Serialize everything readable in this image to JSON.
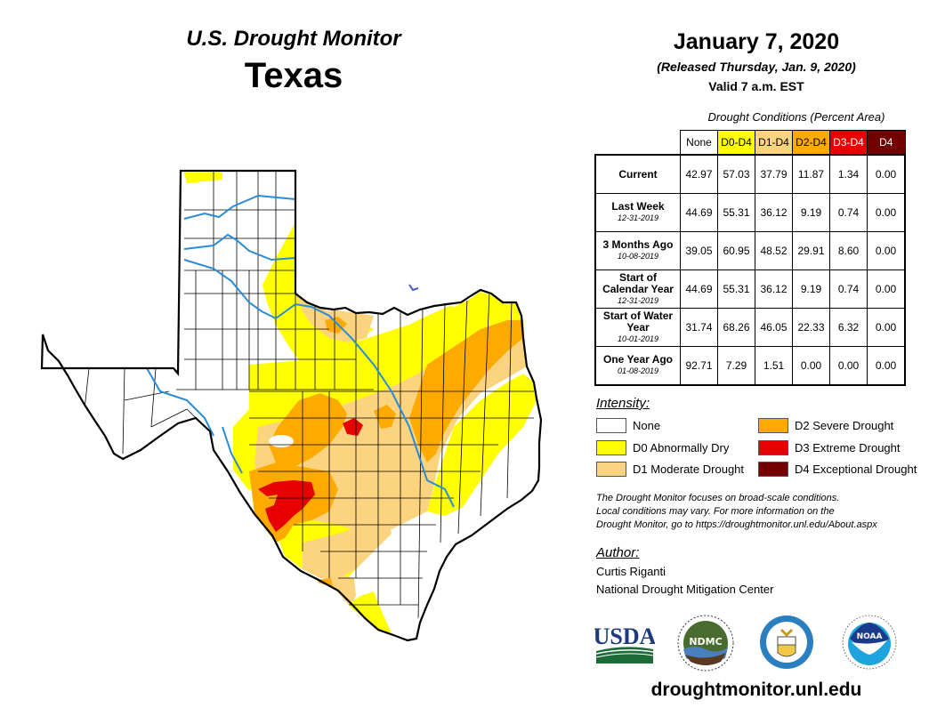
{
  "header": {
    "title": "U.S. Drought Monitor",
    "state": "Texas",
    "date": "January 7, 2020",
    "released": "(Released Thursday, Jan. 9, 2020)",
    "valid": "Valid 7 a.m. EST"
  },
  "table": {
    "caption": "Drought Conditions (Percent Area)",
    "columns": [
      {
        "label": "None",
        "color": "#ffffff",
        "text_color": "#000000"
      },
      {
        "label": "D0-D4",
        "color": "#ffff00",
        "text_color": "#000000"
      },
      {
        "label": "D1-D4",
        "color": "#fcd37f",
        "text_color": "#000000"
      },
      {
        "label": "D2-D4",
        "color": "#ffaa00",
        "text_color": "#000000"
      },
      {
        "label": "D3-D4",
        "color": "#e60000",
        "text_color": "#ffffff"
      },
      {
        "label": "D4",
        "color": "#730000",
        "text_color": "#ffffff"
      }
    ],
    "rows": [
      {
        "label": "Current",
        "date": "",
        "values": [
          "42.97",
          "57.03",
          "37.79",
          "11.87",
          "1.34",
          "0.00"
        ]
      },
      {
        "label": "Last Week",
        "date": "12-31-2019",
        "values": [
          "44.69",
          "55.31",
          "36.12",
          "9.19",
          "0.74",
          "0.00"
        ]
      },
      {
        "label": "3 Months Ago",
        "date": "10-08-2019",
        "values": [
          "39.05",
          "60.95",
          "48.52",
          "29.91",
          "8.60",
          "0.00"
        ]
      },
      {
        "label": "Start of Calendar Year",
        "date": "12-31-2019",
        "values": [
          "44.69",
          "55.31",
          "36.12",
          "9.19",
          "0.74",
          "0.00"
        ]
      },
      {
        "label": "Start of Water Year",
        "date": "10-01-2019",
        "values": [
          "31.74",
          "68.26",
          "46.05",
          "22.33",
          "6.32",
          "0.00"
        ]
      },
      {
        "label": "One Year Ago",
        "date": "01-08-2019",
        "values": [
          "92.71",
          "7.29",
          "1.51",
          "0.00",
          "0.00",
          "0.00"
        ]
      }
    ]
  },
  "legend": {
    "title": "Intensity:",
    "items": [
      {
        "label": "None",
        "color": "#ffffff"
      },
      {
        "label": "D0 Abnormally Dry",
        "color": "#ffff00"
      },
      {
        "label": "D1 Moderate Drought",
        "color": "#fcd37f"
      },
      {
        "label": "D2 Severe Drought",
        "color": "#ffaa00"
      },
      {
        "label": "D3 Extreme Drought",
        "color": "#e60000"
      },
      {
        "label": "D4 Exceptional Drought",
        "color": "#730000"
      }
    ]
  },
  "disclaimer": [
    "The Drought Monitor focuses on broad-scale conditions.",
    "Local conditions may vary. For more information on the",
    "Drought Monitor, go to https://droughtmonitor.unl.edu/About.aspx"
  ],
  "author": {
    "title": "Author:",
    "name": "Curtis Riganti",
    "org": "National Drought Mitigation Center"
  },
  "logos": [
    {
      "name": "usda-logo",
      "text": "USDA"
    },
    {
      "name": "ndmc-logo",
      "text": "NDMC"
    },
    {
      "name": "commerce-logo",
      "text": ""
    },
    {
      "name": "noaa-logo",
      "text": "NOAA"
    }
  ],
  "footer": {
    "url": "droughtmonitor.unl.edu"
  },
  "map": {
    "region": "Texas",
    "colors": {
      "none": "#ffffff",
      "d0": "#ffff00",
      "d1": "#fcd37f",
      "d2": "#ffaa00",
      "d3": "#e60000",
      "river": "#2b8cd6",
      "border": "#000000"
    }
  }
}
